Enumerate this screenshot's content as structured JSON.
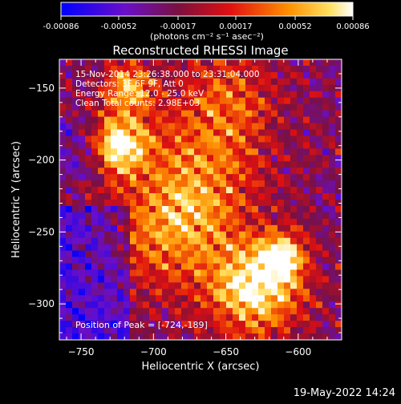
{
  "chart_data": {
    "type": "heatmap",
    "title": "Reconstructed RHESSI Image",
    "xlabel": "Heliocentric X (arcsec)",
    "ylabel": "Heliocentric Y (arcsec)",
    "xlim": [
      -765,
      -570
    ],
    "ylim": [
      -325,
      -130
    ],
    "x_ticks": [
      -750,
      -700,
      -650,
      -600
    ],
    "y_ticks": [
      -150,
      -200,
      -250,
      -300
    ],
    "colorbar": {
      "min": -0.00086,
      "max": 0.00086,
      "ticks": [
        -0.00086,
        -0.00052,
        -0.00017,
        0.00017,
        0.00052,
        0.00086
      ],
      "tick_labels": [
        "-0.00086",
        "-0.00052",
        "-0.00017",
        "0.00017",
        "0.00052",
        "0.00086"
      ],
      "units": "(photons cm⁻² s⁻¹ asec⁻²)"
    },
    "annotations": [
      "15-Nov-2014 23:26:38.000 to 23:31:04.000",
      "Detectors: 3F 6F 9F, Att 0",
      "Energy Range: 12.0 - 25.0 keV",
      "Clean    Total counts: 2.98E+03"
    ],
    "peak_label": "Position of Peak = [-724,-189]",
    "peak": [
      -724,
      -189
    ],
    "sources": [
      {
        "x": -724,
        "y": -189,
        "intensity": 1.0,
        "sigma": 14
      },
      {
        "x": -717,
        "y": -150,
        "intensity": 0.75,
        "sigma": 12
      },
      {
        "x": -630,
        "y": -290,
        "intensity": 0.95,
        "sigma": 22
      },
      {
        "x": -612,
        "y": -268,
        "intensity": 0.8,
        "sigma": 12
      },
      {
        "x": -670,
        "y": -215,
        "intensity": 0.55,
        "sigma": 30
      },
      {
        "x": -690,
        "y": -255,
        "intensity": 0.5,
        "sigma": 28
      },
      {
        "x": -650,
        "y": -160,
        "intensity": 0.45,
        "sigma": 25
      }
    ],
    "grid": false
  },
  "footer": {
    "date": "19-May-2022 14:24"
  },
  "colors": {
    "background": "#000000",
    "foreground": "#ffffff"
  }
}
